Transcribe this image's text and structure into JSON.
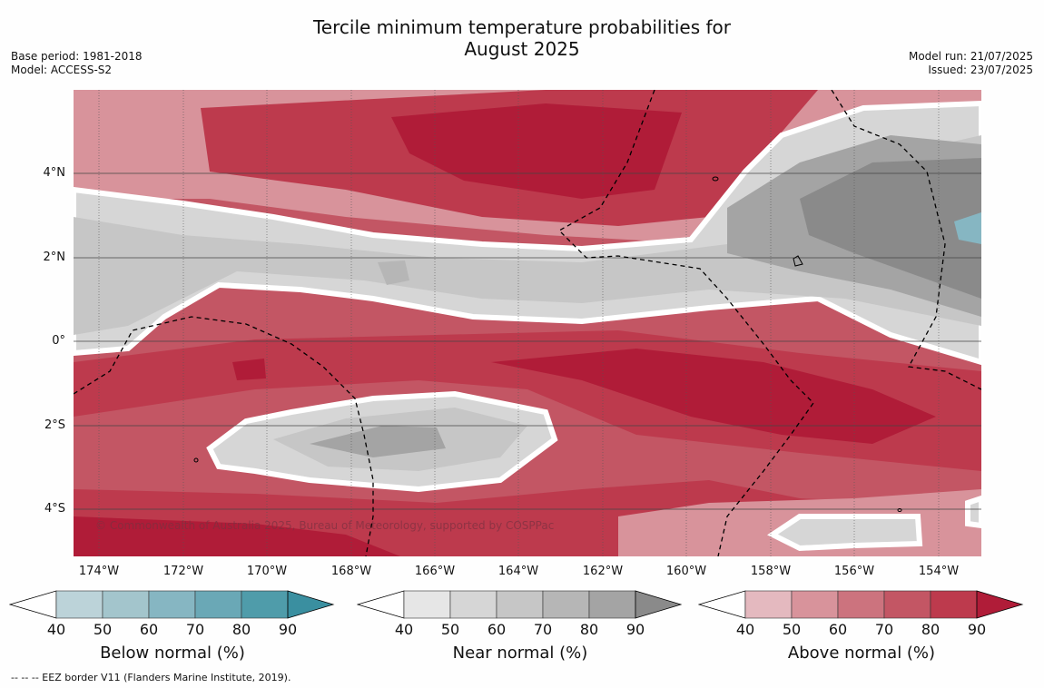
{
  "title": {
    "line1": "Tercile minimum temperature probabilities for",
    "line2": "August 2025"
  },
  "meta": {
    "base_period": "Base period: 1981-2018",
    "model": "Model: ACCESS-S2",
    "model_run": "Model run: 21/07/2025",
    "issued": "Issued: 23/07/2025"
  },
  "map": {
    "copyright": "© Commonwealth of Australia 2025, Bureau of Meteorology, supported by COSPPac",
    "lon_labels": [
      "174°W",
      "172°W",
      "170°W",
      "168°W",
      "166°W",
      "164°W",
      "162°W",
      "160°W",
      "158°W",
      "156°W",
      "154°W"
    ],
    "lat_labels": [
      "4°N",
      "2°N",
      "0°",
      "2°S",
      "4°S"
    ]
  },
  "colorbars": [
    {
      "id": "below",
      "title": "Below normal (%)",
      "ticks": [
        "40",
        "50",
        "60",
        "70",
        "80",
        "90"
      ],
      "colors": [
        "#bcd3d9",
        "#a3c5cc",
        "#86b6c2",
        "#6aa8b6",
        "#4f9caa",
        "#3a8fa0"
      ]
    },
    {
      "id": "near",
      "title": "Near normal (%)",
      "ticks": [
        "40",
        "50",
        "60",
        "70",
        "80",
        "90"
      ],
      "colors": [
        "#e6e6e6",
        "#d6d6d6",
        "#c6c6c6",
        "#b6b6b6",
        "#a4a4a4",
        "#8a8a8a"
      ]
    },
    {
      "id": "above",
      "title": "Above normal (%)",
      "ticks": [
        "40",
        "50",
        "60",
        "70",
        "80",
        "90"
      ],
      "colors": [
        "#e4b9bf",
        "#d8939b",
        "#cc737e",
        "#c35664",
        "#bd3a4d",
        "#b01c38"
      ]
    }
  ],
  "legend": {
    "eez_text": "--  --  -- EEZ border V11 (Flanders Marine Institute, 2019)."
  }
}
